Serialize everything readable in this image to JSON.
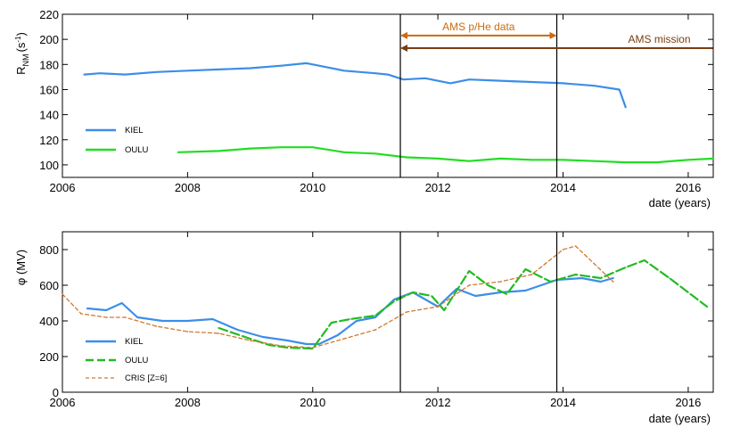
{
  "chart_data": [
    {
      "type": "line",
      "panel": "top",
      "ylabel": "R_NM (s⁻¹)",
      "ylabel_main": "R",
      "ylabel_sub": "NM",
      "ylabel_unit": "(s",
      "ylabel_unit_sup": "-1",
      "ylabel_unit_close": ")",
      "xlabel": "date (years)",
      "xlim": [
        2006,
        2016.4
      ],
      "ylim": [
        90,
        220
      ],
      "xticks": [
        2006,
        2008,
        2010,
        2012,
        2014,
        2016
      ],
      "yticks": [
        100,
        120,
        140,
        160,
        180,
        200,
        220
      ],
      "grid": false,
      "legend": "bottom-left",
      "series": [
        {
          "name": "KIEL",
          "color": "#3b8ee8",
          "x": [
            2006.35,
            2006.6,
            2007.0,
            2007.5,
            2008.0,
            2008.5,
            2009.0,
            2009.5,
            2009.9,
            2010.2,
            2010.5,
            2011.0,
            2011.2,
            2011.45,
            2011.8,
            2012.2,
            2012.5,
            2013.0,
            2013.5,
            2014.0,
            2014.5,
            2014.9,
            2015.0
          ],
          "values": [
            172,
            173,
            172,
            174,
            175,
            176,
            177,
            179,
            181,
            178,
            175,
            173,
            172,
            168,
            169,
            165,
            168,
            167,
            166,
            165,
            163,
            160,
            146
          ]
        },
        {
          "name": "OULU",
          "color": "#22dd22",
          "x": [
            2007.85,
            2008.5,
            2009.0,
            2009.5,
            2010.0,
            2010.5,
            2011.0,
            2011.5,
            2012.0,
            2012.5,
            2013.0,
            2013.5,
            2014.0,
            2014.5,
            2015.0,
            2015.5,
            2016.0,
            2016.4
          ],
          "values": [
            110,
            111,
            113,
            114,
            114,
            110,
            109,
            106,
            105,
            103,
            105,
            104,
            104,
            103,
            102,
            102,
            104,
            105
          ]
        }
      ],
      "annotations": [
        {
          "text": "AMS p/He data",
          "from": 2011.4,
          "to": 2013.9,
          "y": 203,
          "color": "#cc6a10"
        },
        {
          "text": "AMS mission",
          "from": 2011.4,
          "to": 2016.4,
          "y": 193,
          "color": "#7a3d10"
        }
      ],
      "vlines": [
        2011.4,
        2013.9
      ]
    },
    {
      "type": "line",
      "panel": "bottom",
      "ylabel": "φ (MV)",
      "xlabel": "date (years)",
      "xlim": [
        2006,
        2016.4
      ],
      "ylim": [
        0,
        900
      ],
      "xticks": [
        2006,
        2008,
        2010,
        2012,
        2014,
        2016
      ],
      "yticks": [
        0,
        200,
        400,
        600,
        800
      ],
      "grid": false,
      "legend": "bottom-left",
      "series": [
        {
          "name": "KIEL",
          "color": "#3b8ee8",
          "style": "solid",
          "x": [
            2006.4,
            2006.7,
            2006.95,
            2007.2,
            2007.6,
            2008.0,
            2008.4,
            2008.8,
            2009.2,
            2009.6,
            2009.9,
            2010.1,
            2010.4,
            2010.7,
            2011.0,
            2011.3,
            2011.6,
            2012.0,
            2012.3,
            2012.6,
            2013.0,
            2013.4,
            2013.9,
            2014.3,
            2014.6,
            2014.8
          ],
          "values": [
            470,
            460,
            500,
            420,
            400,
            400,
            410,
            350,
            310,
            290,
            270,
            270,
            320,
            400,
            420,
            520,
            560,
            480,
            580,
            540,
            560,
            570,
            630,
            640,
            620,
            640
          ]
        },
        {
          "name": "OULU",
          "color": "#22bb22",
          "style": "long-dash",
          "x": [
            2008.5,
            2009.0,
            2009.3,
            2009.6,
            2010.0,
            2010.3,
            2010.6,
            2011.0,
            2011.3,
            2011.6,
            2011.9,
            2012.1,
            2012.5,
            2012.8,
            2013.1,
            2013.4,
            2013.8,
            2014.2,
            2014.6,
            2015.0,
            2015.3,
            2015.7,
            2016.0,
            2016.3
          ],
          "values": [
            360,
            300,
            265,
            250,
            245,
            390,
            410,
            430,
            510,
            560,
            540,
            460,
            680,
            600,
            550,
            690,
            620,
            660,
            640,
            700,
            740,
            640,
            560,
            480
          ]
        },
        {
          "name": "CRIS [Z=6]",
          "color": "#d07a30",
          "style": "short-dash",
          "x": [
            2006.0,
            2006.3,
            2006.7,
            2007.0,
            2007.5,
            2008.0,
            2008.5,
            2009.0,
            2009.5,
            2010.0,
            2010.5,
            2011.0,
            2011.5,
            2012.0,
            2012.5,
            2013.0,
            2013.5,
            2014.0,
            2014.2,
            2014.5,
            2014.8
          ],
          "values": [
            550,
            440,
            420,
            420,
            370,
            340,
            330,
            290,
            260,
            250,
            300,
            350,
            450,
            480,
            600,
            620,
            660,
            800,
            820,
            720,
            620
          ]
        }
      ],
      "vlines": [
        2011.4,
        2013.9
      ]
    }
  ]
}
